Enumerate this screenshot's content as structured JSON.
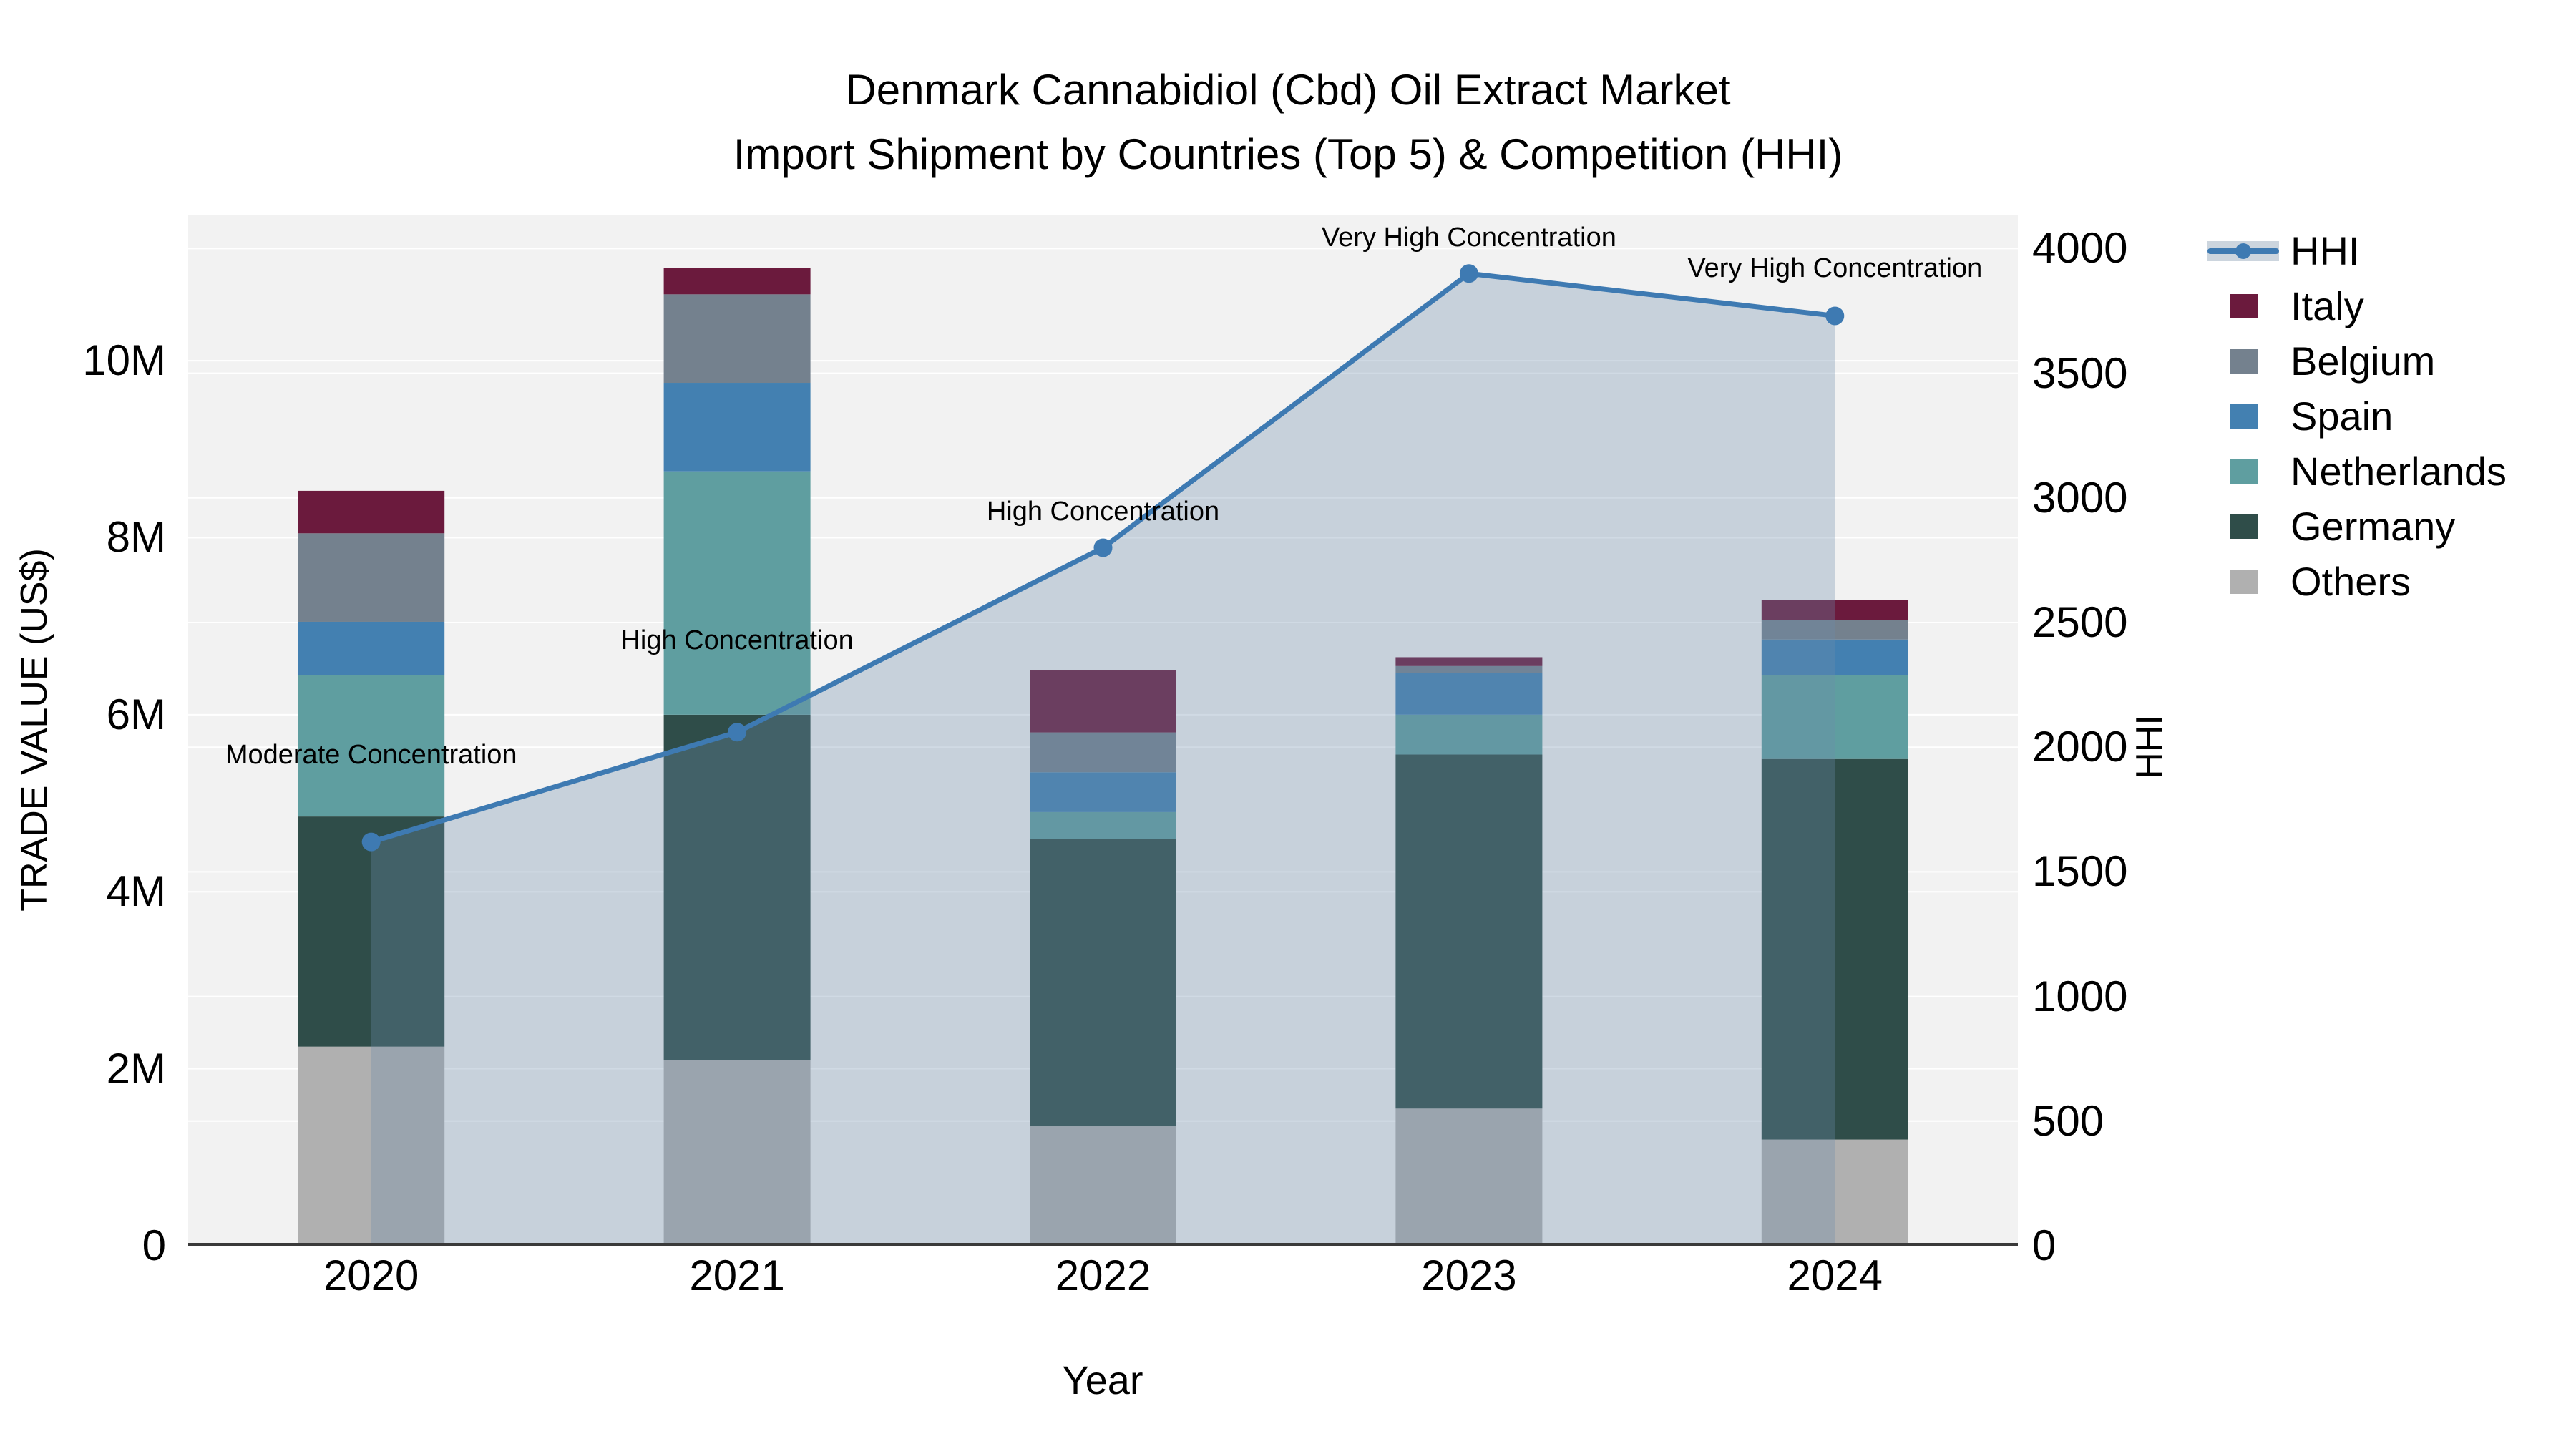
{
  "title": {
    "line1": "Denmark Cannabidiol (Cbd) Oil Extract Market",
    "line2": "Import Shipment by Countries (Top 5) & Competition (HHI)"
  },
  "chart_data": {
    "type": "bar+line",
    "title": "Denmark Cannabidiol (Cbd) Oil Extract Market Import Shipment by Countries (Top 5) & Competition (HHI)",
    "categories": [
      "2020",
      "2021",
      "2022",
      "2023",
      "2024"
    ],
    "x_label": "Year",
    "bar_value_unit": "USD millions (stacked, bottom to top)",
    "series": [
      {
        "name": "Others",
        "color": "#b0b0b0",
        "values": [
          2.25,
          2.1,
          1.35,
          1.55,
          1.2
        ]
      },
      {
        "name": "Germany",
        "color": "#2f4d49",
        "values": [
          2.6,
          3.9,
          3.25,
          4.0,
          4.3
        ]
      },
      {
        "name": "Netherlands",
        "color": "#5f9ea0",
        "values": [
          1.6,
          2.75,
          0.3,
          0.45,
          0.95
        ]
      },
      {
        "name": "Spain",
        "color": "#4380b1",
        "values": [
          0.6,
          1.0,
          0.45,
          0.47,
          0.4
        ]
      },
      {
        "name": "Belgium",
        "color": "#74818e",
        "values": [
          1.0,
          1.0,
          0.45,
          0.08,
          0.22
        ]
      },
      {
        "name": "Italy",
        "color": "#6b1a3d",
        "values": [
          0.48,
          0.3,
          0.7,
          0.1,
          0.23
        ]
      }
    ],
    "line": {
      "name": "HHI",
      "color": "#3e7ab2",
      "values": [
        1620,
        2060,
        2800,
        3900,
        3730
      ]
    },
    "annotations": [
      {
        "x": 0,
        "text": "Moderate Concentration",
        "dy": 100
      },
      {
        "x": 1,
        "text": "High Concentration",
        "dy": 106
      },
      {
        "x": 2,
        "text": "High Concentration",
        "dy": 28
      },
      {
        "x": 3,
        "text": "Very High Concentration",
        "dy": 28
      },
      {
        "x": 4,
        "text": "Very High Concentration",
        "dy": 44
      }
    ],
    "y_left": {
      "label": "TRADE VALUE (US$)",
      "max": 11.65,
      "ticks": [
        {
          "v": 0,
          "label": "0"
        },
        {
          "v": 2,
          "label": "2M"
        },
        {
          "v": 4,
          "label": "4M"
        },
        {
          "v": 6,
          "label": "6M"
        },
        {
          "v": 8,
          "label": "8M"
        },
        {
          "v": 10,
          "label": "10M"
        }
      ]
    },
    "y_right": {
      "label": "HHI",
      "max": 4136,
      "ticks": [
        {
          "v": 0,
          "label": "0"
        },
        {
          "v": 500,
          "label": "500"
        },
        {
          "v": 1000,
          "label": "1000"
        },
        {
          "v": 1500,
          "label": "1500"
        },
        {
          "v": 2000,
          "label": "2000"
        },
        {
          "v": 2500,
          "label": "2500"
        },
        {
          "v": 3000,
          "label": "3000"
        },
        {
          "v": 3500,
          "label": "3500"
        },
        {
          "v": 4000,
          "label": "4000"
        }
      ]
    },
    "legend": [
      {
        "name": "HHI",
        "type": "line"
      },
      {
        "name": "Italy",
        "type": "patch",
        "color": "#6b1a3d"
      },
      {
        "name": "Belgium",
        "type": "patch",
        "color": "#74818e"
      },
      {
        "name": "Spain",
        "type": "patch",
        "color": "#4380b1"
      },
      {
        "name": "Netherlands",
        "type": "patch",
        "color": "#5f9ea0"
      },
      {
        "name": "Germany",
        "type": "patch",
        "color": "#2f4d49"
      },
      {
        "name": "Others",
        "type": "patch",
        "color": "#b0b0b0"
      }
    ],
    "colors": {
      "plot_bg": "#f2f2f2",
      "grid": "#ffffff",
      "spine": "#3a3a3a",
      "hhi_line": "#3e7ab2",
      "area_fill": "rgba(110,140,170,0.32)",
      "legend_band": "#ccd5de"
    }
  }
}
